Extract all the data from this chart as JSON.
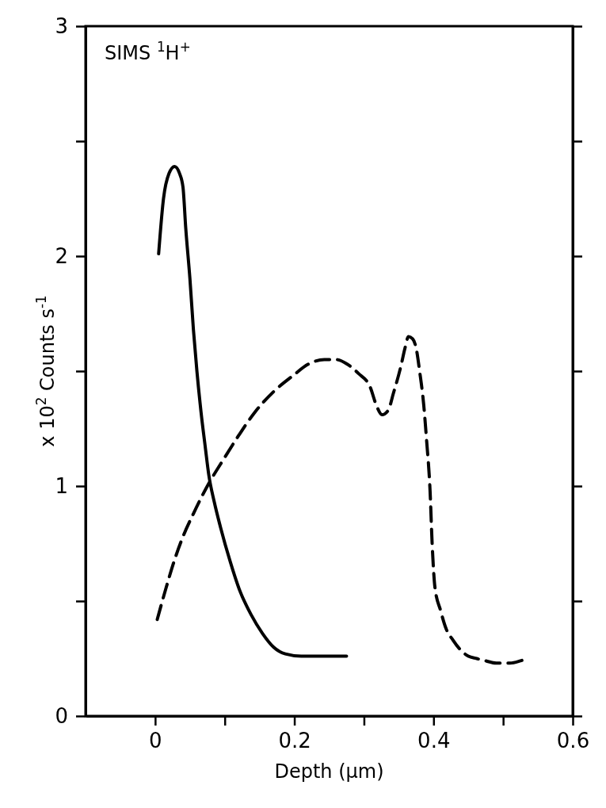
{
  "chart_data": {
    "type": "line",
    "xlabel": "Depth (μm)",
    "ylabel": "x 10$^{2}$ Counts  s$^{-1}$",
    "annotations": [
      "SIMS $^{1}$H$^{+}$"
    ],
    "xlim": [
      -0.1,
      0.6
    ],
    "ylim": [
      0,
      3
    ],
    "xticks": [
      0,
      {
        "value": 0.1,
        "label": null
      },
      0.2,
      {
        "value": 0.3,
        "label": null
      },
      0.4,
      {
        "value": 0.5,
        "label": null
      },
      0.6
    ],
    "yticks": [
      0,
      {
        "value": 0.5,
        "label": null
      },
      1,
      {
        "value": 1.5,
        "label": null
      },
      2,
      {
        "value": 2.5,
        "label": null
      },
      3
    ],
    "grid": false,
    "series": [
      {
        "color": "#000000",
        "line_style": "solid",
        "x": [
          0.005,
          0.012,
          0.02,
          0.028,
          0.035,
          0.04,
          0.044,
          0.05,
          0.055,
          0.06,
          0.066,
          0.072,
          0.077,
          0.085,
          0.094,
          0.108,
          0.121,
          0.138,
          0.154,
          0.17,
          0.187,
          0.21,
          0.24,
          0.275
        ],
        "values": [
          2.01,
          2.25,
          2.36,
          2.39,
          2.36,
          2.3,
          2.12,
          1.9,
          1.68,
          1.5,
          1.32,
          1.17,
          1.05,
          0.93,
          0.82,
          0.67,
          0.55,
          0.44,
          0.36,
          0.3,
          0.27,
          0.26,
          0.26,
          0.26
        ]
      },
      {
        "color": "#000000",
        "line_style": "dashed",
        "x": [
          0.003,
          0.015,
          0.028,
          0.04,
          0.055,
          0.075,
          0.099,
          0.12,
          0.143,
          0.17,
          0.198,
          0.22,
          0.243,
          0.26,
          0.276,
          0.292,
          0.309,
          0.318,
          0.326,
          0.335,
          0.342,
          0.353,
          0.359,
          0.364,
          0.37,
          0.375,
          0.38,
          0.386,
          0.39,
          0.395,
          0.398,
          0.402,
          0.41,
          0.418,
          0.428,
          0.438,
          0.45,
          0.462,
          0.475,
          0.49,
          0.51,
          0.525,
          0.535
        ],
        "values": [
          0.42,
          0.55,
          0.68,
          0.78,
          0.88,
          1.0,
          1.12,
          1.22,
          1.32,
          1.41,
          1.48,
          1.53,
          1.55,
          1.55,
          1.53,
          1.49,
          1.43,
          1.35,
          1.31,
          1.33,
          1.4,
          1.52,
          1.6,
          1.65,
          1.64,
          1.6,
          1.5,
          1.35,
          1.2,
          0.98,
          0.75,
          0.56,
          0.46,
          0.38,
          0.33,
          0.29,
          0.26,
          0.25,
          0.24,
          0.23,
          0.23,
          0.24,
          0.25
        ]
      }
    ]
  }
}
